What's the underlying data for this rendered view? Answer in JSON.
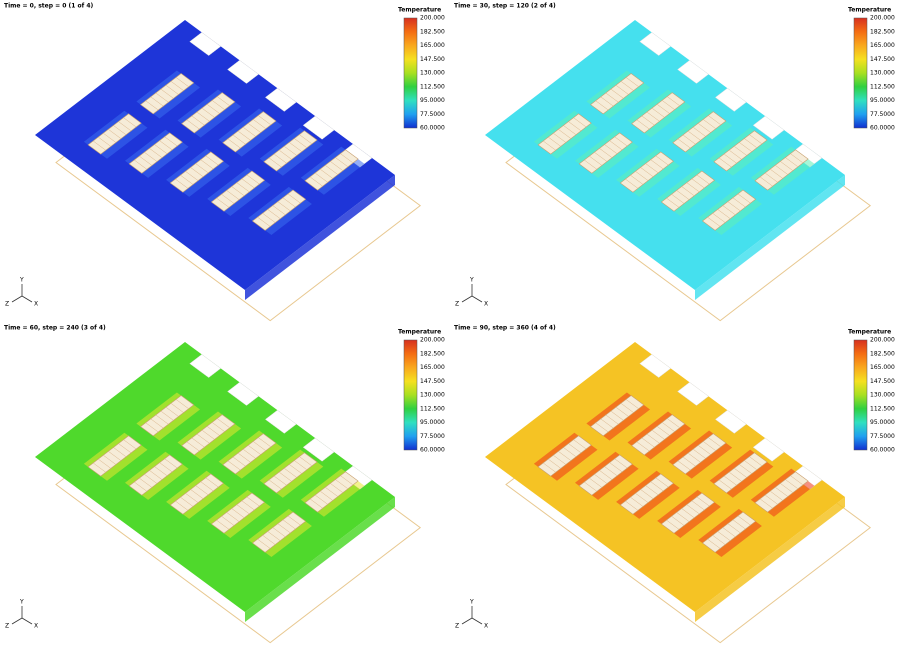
{
  "panels": [
    {
      "title": "Time = 0, step = 0 (1 of 4)"
    },
    {
      "title": "Time = 30, step = 120 (2 of 4)"
    },
    {
      "title": "Time = 60, step = 240 (3 of 4)"
    },
    {
      "title": "Time = 90, step = 360 (4 of 4)"
    }
  ],
  "legend": {
    "title": "Temperature",
    "labels": [
      "200.000",
      "182.500",
      "165.000",
      "147.500",
      "130.000",
      "112.500",
      "95.0000",
      "77.5000",
      "60.0000"
    ]
  },
  "triad": {
    "y": "Y",
    "z": "Z",
    "x": "X"
  }
}
